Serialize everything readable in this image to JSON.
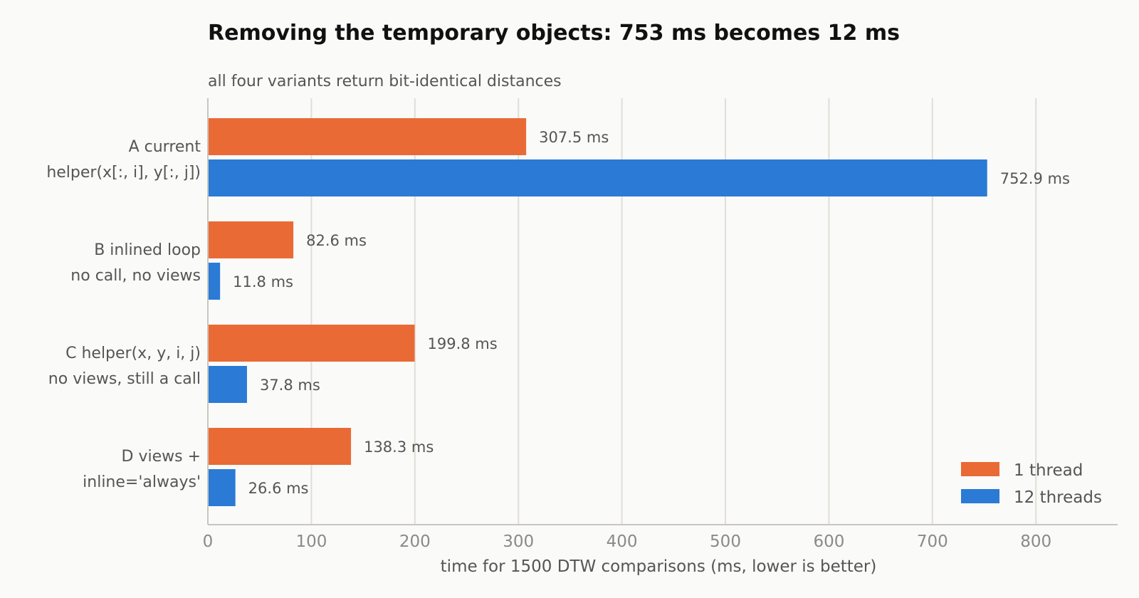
{
  "chart_data": {
    "type": "bar",
    "orientation": "horizontal",
    "title": "Removing the temporary objects: 753 ms becomes 12 ms",
    "subtitle": "all four variants return bit-identical distances",
    "xlabel": "time for 1500 DTW comparisons (ms, lower is better)",
    "ylabel": "",
    "xlim": [
      0,
      880
    ],
    "xticks": [
      0,
      100,
      200,
      300,
      400,
      500,
      600,
      700,
      800
    ],
    "grid": true,
    "legend_position": "bottom-right",
    "categories": [
      {
        "line1": "A  current",
        "line2": "helper(x[:, i], y[:, j])"
      },
      {
        "line1": "B  inlined loop",
        "line2": "no call, no views"
      },
      {
        "line1": "C  helper(x, y, i, j)",
        "line2": "no views, still a call"
      },
      {
        "line1": "D  views +",
        "line2": "inline='always'"
      }
    ],
    "series": [
      {
        "name": "1 thread",
        "color": "#ea6a35",
        "values": [
          307.5,
          82.6,
          199.8,
          138.3
        ],
        "labels": [
          "307.5 ms",
          "82.6 ms",
          "199.8 ms",
          "138.3 ms"
        ]
      },
      {
        "name": "12 threads",
        "color": "#2b7ad6",
        "values": [
          752.9,
          11.8,
          37.8,
          26.6
        ],
        "labels": [
          "752.9 ms",
          "11.8 ms",
          "37.8 ms",
          "26.6 ms"
        ]
      }
    ]
  }
}
